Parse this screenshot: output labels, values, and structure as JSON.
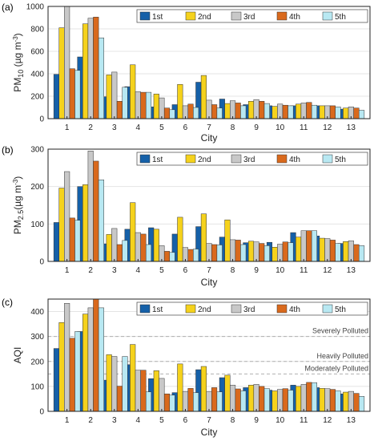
{
  "colors": {
    "series": [
      "#1560a8",
      "#f5d21c",
      "#c8c8c8",
      "#d9691c",
      "#b8e8f2"
    ],
    "grid": "#e4e4e4",
    "axis": "#222222",
    "reference_line": "#b0b0b0"
  },
  "chart_data": [
    {
      "panel_label": "(a)",
      "type": "bar",
      "categories": [
        "1",
        "2",
        "3",
        "4",
        "5",
        "6",
        "7",
        "8",
        "9",
        "10",
        "11",
        "12",
        "13"
      ],
      "series": [
        {
          "name": "1st",
          "values": [
            395,
            550,
            195,
            285,
            105,
            125,
            325,
            175,
            125,
            115,
            115,
            115,
            85
          ]
        },
        {
          "name": "2nd",
          "values": [
            810,
            845,
            390,
            480,
            220,
            305,
            385,
            135,
            155,
            110,
            130,
            115,
            95
          ]
        },
        {
          "name": "3rd",
          "values": [
            1000,
            895,
            415,
            240,
            185,
            115,
            165,
            160,
            170,
            130,
            140,
            115,
            105
          ]
        },
        {
          "name": "4th",
          "values": [
            445,
            905,
            155,
            235,
            95,
            130,
            125,
            140,
            155,
            120,
            145,
            115,
            95
          ]
        },
        {
          "name": "5th",
          "values": [
            430,
            720,
            280,
            235,
            80,
            100,
            95,
            115,
            135,
            115,
            120,
            105,
            75
          ]
        }
      ],
      "xlabel": "City",
      "ylabel_main": "PM",
      "ylabel_sub": "10",
      "ylabel_unit": " (µg m",
      "ylabel_sup": "-3",
      "ylabel_close": ")",
      "ylim": [
        0,
        1000
      ],
      "yticks": [
        0,
        200,
        400,
        600,
        800,
        1000
      ],
      "grid": true,
      "legend_position": "top-right",
      "reference_lines": []
    },
    {
      "panel_label": "(b)",
      "type": "bar",
      "categories": [
        "1",
        "2",
        "3",
        "4",
        "5",
        "6",
        "7",
        "8",
        "9",
        "10",
        "11",
        "12",
        "13"
      ],
      "series": [
        {
          "name": "1st",
          "values": [
            104,
            200,
            47,
            86,
            90,
            73,
            93,
            65,
            50,
            51,
            77,
            68,
            48
          ]
        },
        {
          "name": "2nd",
          "values": [
            196,
            205,
            72,
            157,
            86,
            118,
            127,
            111,
            54,
            38,
            65,
            62,
            53
          ]
        },
        {
          "name": "3rd",
          "values": [
            240,
            295,
            88,
            77,
            42,
            37,
            48,
            58,
            52,
            46,
            82,
            61,
            55
          ]
        },
        {
          "name": "4th",
          "values": [
            116,
            268,
            45,
            73,
            27,
            32,
            45,
            57,
            48,
            52,
            82,
            57,
            45
          ]
        },
        {
          "name": "5th",
          "values": [
            110,
            218,
            56,
            45,
            24,
            33,
            44,
            45,
            42,
            50,
            82,
            48,
            42
          ]
        }
      ],
      "xlabel": "City",
      "ylabel_main": "PM",
      "ylabel_sub": "2.5",
      "ylabel_unit": "(µg m",
      "ylabel_sup": "-3",
      "ylabel_close": ")",
      "ylim": [
        0,
        300
      ],
      "yticks": [
        0,
        100,
        200,
        300
      ],
      "grid": true,
      "legend_position": "top-right",
      "reference_lines": []
    },
    {
      "panel_label": "(c)",
      "type": "bar",
      "categories": [
        "1",
        "2",
        "3",
        "4",
        "5",
        "6",
        "7",
        "8",
        "9",
        "10",
        "11",
        "12",
        "13"
      ],
      "series": [
        {
          "name": "1st",
          "values": [
            252,
            320,
            125,
            187,
            131,
            75,
            167,
            135,
            95,
            85,
            105,
            95,
            70
          ]
        },
        {
          "name": "2nd",
          "values": [
            356,
            390,
            227,
            268,
            163,
            190,
            180,
            145,
            105,
            82,
            100,
            92,
            77
          ]
        },
        {
          "name": "3rd",
          "values": [
            433,
            415,
            220,
            165,
            132,
            80,
            80,
            105,
            108,
            88,
            108,
            91,
            80
          ]
        },
        {
          "name": "4th",
          "values": [
            293,
            450,
            101,
            165,
            70,
            92,
            95,
            90,
            100,
            91,
            116,
            88,
            72
          ]
        },
        {
          "name": "5th",
          "values": [
            320,
            415,
            220,
            78,
            65,
            75,
            78,
            82,
            91,
            85,
            115,
            82,
            60
          ]
        }
      ],
      "xlabel": "City",
      "ylabel_main": "AQI",
      "ylim": [
        0,
        450
      ],
      "yticks": [
        0,
        100,
        200,
        300,
        400
      ],
      "grid": true,
      "legend_position": "top-right",
      "reference_lines": [
        {
          "value": 300,
          "label": "Severely Polluted"
        },
        {
          "value": 200,
          "label": "Heavily Polluted"
        },
        {
          "value": 150,
          "label": "Moderately Polluted"
        }
      ]
    }
  ]
}
